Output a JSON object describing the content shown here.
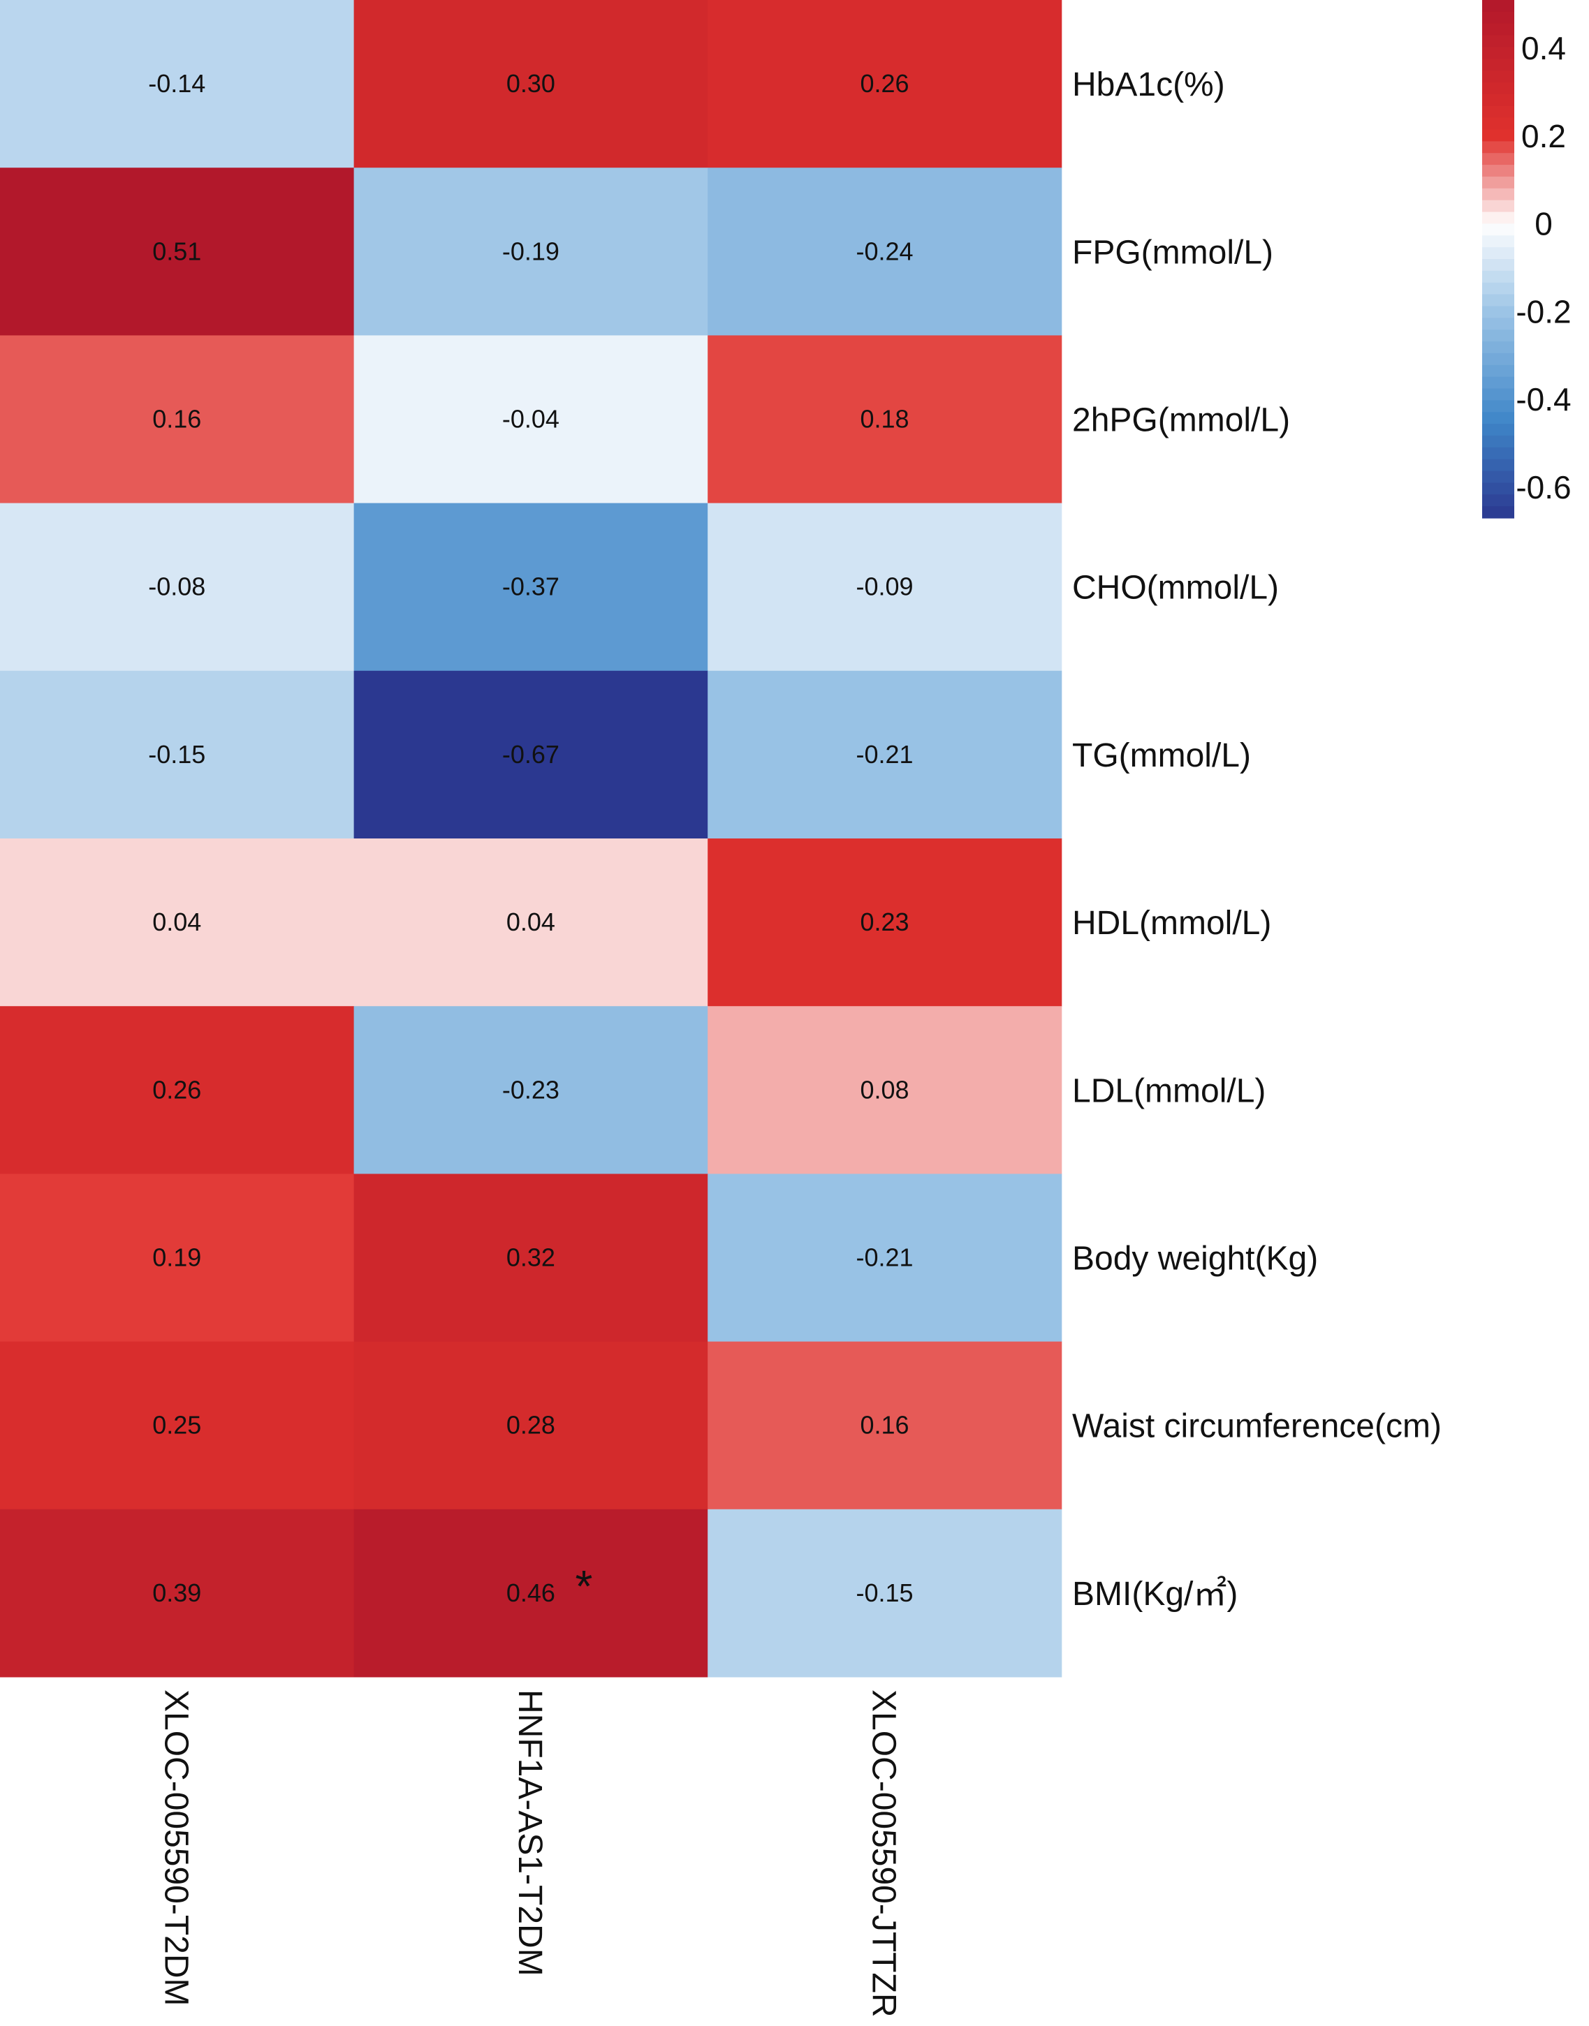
{
  "chart_data": {
    "type": "heatmap",
    "title": "",
    "rows": [
      "HbA1c(%)",
      "FPG(mmol/L)",
      "2hPG(mmol/L)",
      "CHO(mmol/L)",
      "TG(mmol/L)",
      "HDL(mmol/L)",
      "LDL(mmol/L)",
      "Body weight(Kg)",
      "Waist circumference(cm)",
      "BMI(Kg/㎡)"
    ],
    "columns": [
      "XLOC-005590-T2DM",
      "HNF1A-AS1-T2DM",
      "XLOC-005590-JTTZR"
    ],
    "values": [
      [
        -0.14,
        0.3,
        0.26
      ],
      [
        0.51,
        -0.19,
        -0.24
      ],
      [
        0.16,
        -0.04,
        0.18
      ],
      [
        -0.08,
        -0.37,
        -0.09
      ],
      [
        -0.15,
        -0.67,
        -0.21
      ],
      [
        0.04,
        0.04,
        0.23
      ],
      [
        0.26,
        -0.23,
        0.08
      ],
      [
        0.19,
        0.32,
        -0.21
      ],
      [
        0.25,
        0.28,
        0.16
      ],
      [
        0.39,
        0.46,
        -0.15
      ]
    ],
    "cell_labels": [
      [
        "-0.14",
        "0.30",
        "0.26"
      ],
      [
        "0.51",
        "-0.19",
        "-0.24"
      ],
      [
        "0.16",
        "-0.04",
        "0.18"
      ],
      [
        "-0.08",
        "-0.37",
        "-0.09"
      ],
      [
        "-0.15",
        "-0.67",
        "-0.21"
      ],
      [
        "0.04",
        "0.04",
        "0.23"
      ],
      [
        "0.26",
        "-0.23",
        "0.08"
      ],
      [
        "0.19",
        "0.32",
        "-0.21"
      ],
      [
        "0.25",
        "0.28",
        "0.16"
      ],
      [
        "0.39",
        "0.46",
        "-0.15"
      ]
    ],
    "significance_marks": [
      {
        "row": 9,
        "col": 1,
        "symbol": "*"
      }
    ],
    "colorbar": {
      "range": [
        -0.67,
        0.51
      ],
      "ticks": [
        0.4,
        0.2,
        0,
        -0.2,
        -0.4,
        -0.6
      ],
      "tick_labels": [
        "0.4",
        "0.2",
        "0",
        "-0.2",
        "-0.4",
        "-0.6"
      ],
      "placement": "top-right"
    },
    "colors": {
      "max": "#b2182b",
      "high": "#e0312d",
      "mid": "#ffffff",
      "low": "#9cc4e6",
      "mid_low": "#3f86c8",
      "min": "#2b3890"
    },
    "row_labels_side": "right",
    "column_labels_side": "bottom",
    "column_label_rotation": "vertical"
  }
}
